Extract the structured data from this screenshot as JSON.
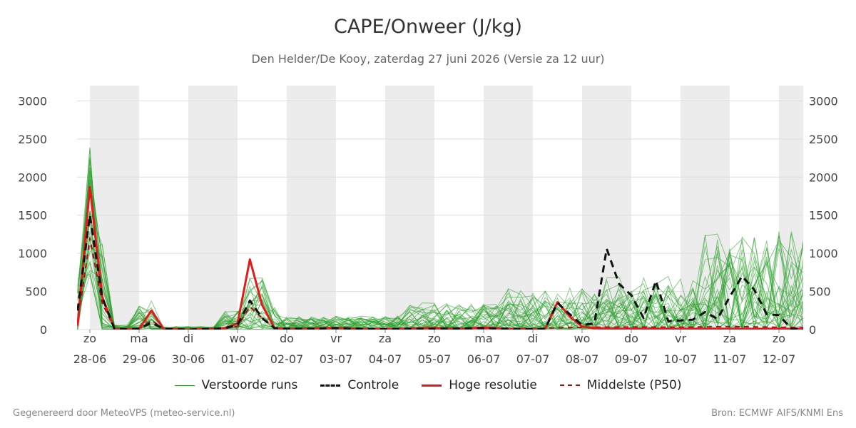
{
  "chart_data": {
    "type": "line",
    "title": "CAPE/Onweer (J/kg)",
    "subtitle": "Den Helder/De Kooy, zaterdag 27 juni 2026 (Versie za 12 uur)",
    "ylim": [
      0,
      3200
    ],
    "yticks": [
      0,
      500,
      1000,
      1500,
      2000,
      2500,
      3000
    ],
    "x_unit": "day index from 28-06 00h",
    "xlim": [
      0,
      14.5
    ],
    "day_labels": [
      {
        "day": "zo",
        "date": "28-06"
      },
      {
        "day": "ma",
        "date": "29-06"
      },
      {
        "day": "di",
        "date": "30-06"
      },
      {
        "day": "wo",
        "date": "01-07"
      },
      {
        "day": "do",
        "date": "02-07"
      },
      {
        "day": "vr",
        "date": "03-07"
      },
      {
        "day": "za",
        "date": "04-07"
      },
      {
        "day": "zo",
        "date": "05-07"
      },
      {
        "day": "ma",
        "date": "06-07"
      },
      {
        "day": "di",
        "date": "07-07"
      },
      {
        "day": "wo",
        "date": "08-07"
      },
      {
        "day": "do",
        "date": "09-07"
      },
      {
        "day": "vr",
        "date": "10-07"
      },
      {
        "day": "za",
        "date": "11-07"
      },
      {
        "day": "zo",
        "date": "12-07"
      }
    ],
    "series": [
      {
        "name": "Controle",
        "x": [
          -0.25,
          0,
          0.25,
          0.5,
          0.75,
          1,
          1.25,
          1.5,
          1.75,
          2,
          2.25,
          2.5,
          2.75,
          3,
          3.25,
          3.5,
          3.75,
          4,
          4.5,
          5,
          5.5,
          6,
          6.5,
          7,
          7.5,
          8,
          8.5,
          9,
          9.25,
          9.5,
          9.75,
          10,
          10.25,
          10.5,
          10.75,
          11,
          11.25,
          11.5,
          11.75,
          12,
          12.25,
          12.5,
          12.75,
          13,
          13.25,
          13.5,
          13.75,
          14,
          14.25,
          14.5
        ],
        "values": [
          250,
          1500,
          420,
          10,
          5,
          10,
          90,
          10,
          5,
          0,
          5,
          10,
          20,
          60,
          380,
          150,
          20,
          10,
          10,
          20,
          10,
          5,
          10,
          10,
          15,
          20,
          10,
          5,
          10,
          350,
          200,
          60,
          80,
          1060,
          600,
          450,
          150,
          640,
          110,
          120,
          130,
          230,
          140,
          430,
          700,
          520,
          200,
          190,
          10,
          10
        ]
      },
      {
        "name": "Hoge resolutie",
        "x": [
          -0.25,
          0,
          0.25,
          0.5,
          0.75,
          1,
          1.25,
          1.5,
          1.75,
          2,
          2.25,
          2.5,
          2.75,
          3,
          3.25,
          3.5,
          3.75,
          4,
          4.5,
          5,
          5.5,
          6,
          6.5,
          7,
          7.5,
          8,
          8.5,
          9,
          9.25,
          9.5,
          9.75,
          10,
          10.25,
          10.5,
          11,
          11.5,
          12,
          12.5,
          13,
          13.5,
          14,
          14.5
        ],
        "values": [
          50,
          1870,
          430,
          10,
          5,
          10,
          250,
          10,
          5,
          0,
          5,
          10,
          20,
          80,
          920,
          320,
          20,
          10,
          15,
          20,
          10,
          5,
          15,
          20,
          10,
          25,
          10,
          5,
          10,
          360,
          170,
          40,
          20,
          15,
          10,
          10,
          10,
          10,
          10,
          10,
          10,
          10
        ]
      },
      {
        "name": "Middelste (P50)",
        "x": [
          -0.25,
          0,
          0.25,
          0.5,
          0.75,
          1,
          1.25,
          1.5,
          2,
          2.5,
          3,
          3.25,
          3.5,
          3.75,
          4,
          5,
          6,
          7,
          8,
          9,
          10,
          11,
          12,
          13,
          14,
          14.5
        ],
        "values": [
          80,
          1200,
          350,
          10,
          5,
          10,
          120,
          10,
          0,
          10,
          40,
          300,
          150,
          20,
          10,
          15,
          10,
          15,
          20,
          15,
          30,
          35,
          30,
          40,
          30,
          25
        ]
      }
    ],
    "legend": {
      "position": "bottom",
      "entries": [
        "Verstoorde runs",
        "Controle",
        "Hoge resolutie",
        "Middelste (P50)"
      ]
    },
    "colors": {
      "ensemble": "#2ca02c",
      "controle": "#111111",
      "hoge_resolutie": "#e31a1c",
      "p50": "#a50f15",
      "weekend_band": "#ececec",
      "grid": "#dddddd"
    },
    "grid": true
  },
  "footer": {
    "left": "Gegenereerd door MeteoVPS (meteo-service.nl)",
    "right": "Bron: ECMWF AIFS/KNMI Ens"
  }
}
